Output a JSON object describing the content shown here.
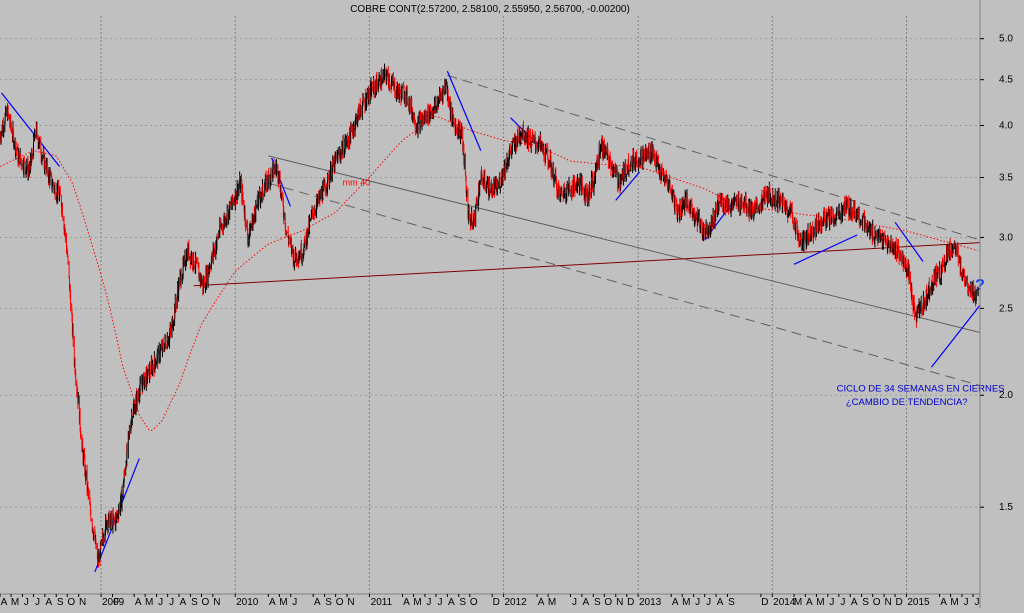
{
  "chart_data": {
    "type": "candlestick",
    "title": "COBRE CONT(2.57200, 2.58100, 2.55950, 2.56700, -0.00200)",
    "xlabel": "",
    "ylabel": "",
    "y_scale": "log",
    "ylim": [
      1.2,
      5.3
    ],
    "y_ticks": [
      {
        "value": 5.0,
        "label": "5.0"
      },
      {
        "value": 4.5,
        "label": "4.5"
      },
      {
        "value": 4.0,
        "label": "4.0"
      },
      {
        "value": 3.5,
        "label": "3.5"
      },
      {
        "value": 3.0,
        "label": "3.0"
      },
      {
        "value": 2.5,
        "label": "2.5"
      },
      {
        "value": 2.0,
        "label": "2.0"
      },
      {
        "value": 1.5,
        "label": "1.5"
      }
    ],
    "x_start": "2008-04-01",
    "x_end": "2015-07-20",
    "x_ticks": [
      {
        "date": "2008-04-01",
        "label": "A"
      },
      {
        "date": "2008-05-01",
        "label": "M"
      },
      {
        "date": "2008-06-01",
        "label": "J"
      },
      {
        "date": "2008-07-01",
        "label": "J"
      },
      {
        "date": "2008-08-01",
        "label": "A"
      },
      {
        "date": "2008-09-01",
        "label": "S"
      },
      {
        "date": "2008-10-01",
        "label": "O"
      },
      {
        "date": "2008-11-01",
        "label": "N"
      },
      {
        "date": "2009-01-01",
        "label": "2009"
      },
      {
        "date": "2009-02-01",
        "label": "F"
      },
      {
        "date": "2009-04-01",
        "label": "A"
      },
      {
        "date": "2009-05-01",
        "label": "M"
      },
      {
        "date": "2009-06-01",
        "label": "J"
      },
      {
        "date": "2009-07-01",
        "label": "J"
      },
      {
        "date": "2009-08-01",
        "label": "A"
      },
      {
        "date": "2009-09-01",
        "label": "S"
      },
      {
        "date": "2009-10-01",
        "label": "O"
      },
      {
        "date": "2009-11-01",
        "label": "N"
      },
      {
        "date": "2010-01-01",
        "label": "2010"
      },
      {
        "date": "2010-04-01",
        "label": "A"
      },
      {
        "date": "2010-05-01",
        "label": "M"
      },
      {
        "date": "2010-06-01",
        "label": "J"
      },
      {
        "date": "2010-08-01",
        "label": "A"
      },
      {
        "date": "2010-09-01",
        "label": "S"
      },
      {
        "date": "2010-10-01",
        "label": "O"
      },
      {
        "date": "2010-11-01",
        "label": "N"
      },
      {
        "date": "2011-01-01",
        "label": "2011"
      },
      {
        "date": "2011-04-01",
        "label": "A"
      },
      {
        "date": "2011-05-01",
        "label": "M"
      },
      {
        "date": "2011-06-01",
        "label": "J"
      },
      {
        "date": "2011-07-01",
        "label": "J"
      },
      {
        "date": "2011-08-01",
        "label": "A"
      },
      {
        "date": "2011-09-01",
        "label": "S"
      },
      {
        "date": "2011-10-01",
        "label": "O"
      },
      {
        "date": "2011-12-01",
        "label": "D"
      },
      {
        "date": "2012-01-01",
        "label": "2012"
      },
      {
        "date": "2012-04-01",
        "label": "A"
      },
      {
        "date": "2012-05-01",
        "label": "M"
      },
      {
        "date": "2012-07-01",
        "label": "J"
      },
      {
        "date": "2012-08-01",
        "label": "A"
      },
      {
        "date": "2012-09-01",
        "label": "S"
      },
      {
        "date": "2012-10-01",
        "label": "O"
      },
      {
        "date": "2012-11-01",
        "label": "N"
      },
      {
        "date": "2012-12-01",
        "label": "D"
      },
      {
        "date": "2013-01-01",
        "label": "2013"
      },
      {
        "date": "2013-04-01",
        "label": "A"
      },
      {
        "date": "2013-05-01",
        "label": "M"
      },
      {
        "date": "2013-06-01",
        "label": "J"
      },
      {
        "date": "2013-07-01",
        "label": "J"
      },
      {
        "date": "2013-08-01",
        "label": "A"
      },
      {
        "date": "2013-09-01",
        "label": "S"
      },
      {
        "date": "2013-12-01",
        "label": "D"
      },
      {
        "date": "2014-01-01",
        "label": "2014"
      },
      {
        "date": "2014-03-01",
        "label": "M"
      },
      {
        "date": "2014-04-01",
        "label": "A"
      },
      {
        "date": "2014-05-01",
        "label": "M"
      },
      {
        "date": "2014-06-01",
        "label": "J"
      },
      {
        "date": "2014-07-01",
        "label": "J"
      },
      {
        "date": "2014-08-01",
        "label": "A"
      },
      {
        "date": "2014-09-01",
        "label": "S"
      },
      {
        "date": "2014-10-01",
        "label": "O"
      },
      {
        "date": "2014-11-01",
        "label": "N"
      },
      {
        "date": "2014-12-01",
        "label": "D"
      },
      {
        "date": "2015-01-01",
        "label": "2015"
      },
      {
        "date": "2015-04-01",
        "label": "A"
      },
      {
        "date": "2015-05-01",
        "label": "M"
      },
      {
        "date": "2015-06-01",
        "label": "J"
      },
      {
        "date": "2015-07-01",
        "label": "J"
      }
    ],
    "x_gridlines": [
      "2009-01-01",
      "2010-01-01",
      "2011-01-01",
      "2012-01-01",
      "2013-01-01",
      "2014-01-01",
      "2015-01-01"
    ],
    "price_keypoints": [
      [
        "2008-04-01",
        3.9
      ],
      [
        "2008-04-20",
        4.15
      ],
      [
        "2008-05-20",
        3.7
      ],
      [
        "2008-06-20",
        3.55
      ],
      [
        "2008-07-08",
        3.95
      ],
      [
        "2008-07-25",
        3.7
      ],
      [
        "2008-08-20",
        3.45
      ],
      [
        "2008-09-15",
        3.3
      ],
      [
        "2008-09-30",
        2.9
      ],
      [
        "2008-10-20",
        2.2
      ],
      [
        "2008-11-10",
        1.75
      ],
      [
        "2008-12-01",
        1.5
      ],
      [
        "2008-12-24",
        1.3
      ],
      [
        "2009-01-15",
        1.45
      ],
      [
        "2009-02-10",
        1.45
      ],
      [
        "2009-02-28",
        1.55
      ],
      [
        "2009-03-25",
        1.9
      ],
      [
        "2009-04-20",
        2.05
      ],
      [
        "2009-05-20",
        2.15
      ],
      [
        "2009-06-15",
        2.25
      ],
      [
        "2009-07-10",
        2.35
      ],
      [
        "2009-07-31",
        2.65
      ],
      [
        "2009-08-25",
        2.9
      ],
      [
        "2009-09-15",
        2.8
      ],
      [
        "2009-10-05",
        2.65
      ],
      [
        "2009-10-25",
        2.8
      ],
      [
        "2009-11-20",
        3.05
      ],
      [
        "2009-12-20",
        3.25
      ],
      [
        "2010-01-15",
        3.45
      ],
      [
        "2010-02-05",
        3.0
      ],
      [
        "2010-03-05",
        3.3
      ],
      [
        "2010-04-10",
        3.55
      ],
      [
        "2010-04-25",
        3.6
      ],
      [
        "2010-05-20",
        3.05
      ],
      [
        "2010-06-10",
        2.85
      ],
      [
        "2010-07-05",
        2.9
      ],
      [
        "2010-07-31",
        3.2
      ],
      [
        "2010-09-01",
        3.4
      ],
      [
        "2010-10-01",
        3.65
      ],
      [
        "2010-11-10",
        3.9
      ],
      [
        "2010-12-10",
        4.2
      ],
      [
        "2011-01-10",
        4.4
      ],
      [
        "2011-02-15",
        4.55
      ],
      [
        "2011-03-20",
        4.35
      ],
      [
        "2011-04-10",
        4.35
      ],
      [
        "2011-05-10",
        4.0
      ],
      [
        "2011-06-05",
        4.1
      ],
      [
        "2011-07-01",
        4.2
      ],
      [
        "2011-07-28",
        4.45
      ],
      [
        "2011-08-15",
        4.05
      ],
      [
        "2011-09-10",
        3.9
      ],
      [
        "2011-09-26",
        3.2
      ],
      [
        "2011-10-10",
        3.1
      ],
      [
        "2011-10-31",
        3.5
      ],
      [
        "2011-11-25",
        3.4
      ],
      [
        "2011-12-15",
        3.4
      ],
      [
        "2012-01-20",
        3.75
      ],
      [
        "2012-02-20",
        3.95
      ],
      [
        "2012-03-15",
        3.85
      ],
      [
        "2012-04-10",
        3.8
      ],
      [
        "2012-05-05",
        3.65
      ],
      [
        "2012-06-01",
        3.35
      ],
      [
        "2012-06-25",
        3.4
      ],
      [
        "2012-07-25",
        3.45
      ],
      [
        "2012-08-15",
        3.35
      ],
      [
        "2012-09-05",
        3.5
      ],
      [
        "2012-09-20",
        3.8
      ],
      [
        "2012-10-10",
        3.7
      ],
      [
        "2012-11-10",
        3.45
      ],
      [
        "2012-12-10",
        3.65
      ],
      [
        "2013-01-15",
        3.7
      ],
      [
        "2013-02-10",
        3.75
      ],
      [
        "2013-02-28",
        3.55
      ],
      [
        "2013-03-25",
        3.45
      ],
      [
        "2013-04-20",
        3.2
      ],
      [
        "2013-05-10",
        3.3
      ],
      [
        "2013-06-10",
        3.15
      ],
      [
        "2013-06-28",
        3.05
      ],
      [
        "2013-07-20",
        3.1
      ],
      [
        "2013-08-10",
        3.3
      ],
      [
        "2013-09-10",
        3.25
      ],
      [
        "2013-10-10",
        3.3
      ],
      [
        "2013-11-10",
        3.2
      ],
      [
        "2013-12-20",
        3.35
      ],
      [
        "2014-01-20",
        3.3
      ],
      [
        "2014-02-20",
        3.2
      ],
      [
        "2014-03-20",
        2.95
      ],
      [
        "2014-04-20",
        3.05
      ],
      [
        "2014-05-20",
        3.15
      ],
      [
        "2014-06-20",
        3.15
      ],
      [
        "2014-07-20",
        3.25
      ],
      [
        "2014-08-20",
        3.2
      ],
      [
        "2014-09-20",
        3.05
      ],
      [
        "2014-10-20",
        3.0
      ],
      [
        "2014-11-10",
        2.95
      ],
      [
        "2014-12-10",
        2.9
      ],
      [
        "2015-01-05",
        2.75
      ],
      [
        "2015-01-25",
        2.45
      ],
      [
        "2015-02-20",
        2.55
      ],
      [
        "2015-03-15",
        2.7
      ],
      [
        "2015-04-05",
        2.75
      ],
      [
        "2015-04-25",
        2.9
      ],
      [
        "2015-05-12",
        2.93
      ],
      [
        "2015-06-01",
        2.75
      ],
      [
        "2015-06-20",
        2.65
      ],
      [
        "2015-07-15",
        2.567
      ]
    ],
    "ma_keypoints": [
      [
        "2008-04-01",
        3.6
      ],
      [
        "2008-07-01",
        3.75
      ],
      [
        "2008-09-01",
        3.7
      ],
      [
        "2008-10-15",
        3.45
      ],
      [
        "2008-12-01",
        3.0
      ],
      [
        "2009-01-20",
        2.55
      ],
      [
        "2009-03-01",
        2.15
      ],
      [
        "2009-04-15",
        1.9
      ],
      [
        "2009-05-15",
        1.82
      ],
      [
        "2009-06-15",
        1.87
      ],
      [
        "2009-08-01",
        2.05
      ],
      [
        "2009-10-01",
        2.4
      ],
      [
        "2010-01-01",
        2.75
      ],
      [
        "2010-04-01",
        2.95
      ],
      [
        "2010-07-01",
        3.05
      ],
      [
        "2010-10-01",
        3.2
      ],
      [
        "2011-01-01",
        3.5
      ],
      [
        "2011-04-01",
        3.85
      ],
      [
        "2011-07-01",
        4.1
      ],
      [
        "2011-10-01",
        3.95
      ],
      [
        "2012-01-01",
        3.85
      ],
      [
        "2012-04-01",
        3.8
      ],
      [
        "2012-07-01",
        3.65
      ],
      [
        "2012-10-01",
        3.62
      ],
      [
        "2013-01-01",
        3.6
      ],
      [
        "2013-04-01",
        3.5
      ],
      [
        "2013-07-01",
        3.4
      ],
      [
        "2013-10-01",
        3.25
      ],
      [
        "2014-01-01",
        3.22
      ],
      [
        "2014-04-01",
        3.18
      ],
      [
        "2014-07-01",
        3.15
      ],
      [
        "2014-10-01",
        3.1
      ],
      [
        "2015-01-01",
        3.05
      ],
      [
        "2015-04-01",
        2.98
      ],
      [
        "2015-07-15",
        2.9
      ]
    ],
    "series": [
      {
        "name": "COBRE CONT",
        "style": "candles",
        "color_up": "#000000",
        "color_down": "#ff0000"
      },
      {
        "name": "mm 40",
        "style": "dotted-line",
        "color": "#ff0000"
      }
    ],
    "trendlines": [
      {
        "kind": "channel-upper",
        "style": "dashed",
        "color": "#606060",
        "from": [
          "2011-08-01",
          4.55
        ],
        "to": [
          "2015-07-20",
          2.98
        ]
      },
      {
        "kind": "channel-middle",
        "style": "solid",
        "color": "#606060",
        "from": [
          "2010-04-01",
          3.7
        ],
        "to": [
          "2015-07-20",
          2.35
        ]
      },
      {
        "kind": "channel-lower",
        "style": "dashed",
        "color": "#606060",
        "from": [
          "2010-04-01",
          3.45
        ],
        "to": [
          "2015-07-20",
          2.05
        ]
      },
      {
        "kind": "support",
        "style": "solid",
        "color": "#800000",
        "from": [
          "2009-09-10",
          2.65
        ],
        "to": [
          "2015-07-20",
          2.96
        ]
      },
      {
        "kind": "short",
        "style": "solid",
        "color": "#0000ff",
        "from": [
          "2008-04-05",
          4.35
        ],
        "to": [
          "2008-09-10",
          3.6
        ]
      },
      {
        "kind": "short",
        "style": "solid",
        "color": "#0000ff",
        "from": [
          "2008-12-15",
          1.27
        ],
        "to": [
          "2009-04-15",
          1.7
        ]
      },
      {
        "kind": "short",
        "style": "solid",
        "color": "#0000ff",
        "from": [
          "2010-04-10",
          3.68
        ],
        "to": [
          "2010-05-31",
          3.25
        ]
      },
      {
        "kind": "short",
        "style": "solid",
        "color": "#0000ff",
        "from": [
          "2011-08-01",
          4.6
        ],
        "to": [
          "2011-10-31",
          3.75
        ]
      },
      {
        "kind": "short",
        "style": "solid",
        "color": "#0000ff",
        "from": [
          "2012-01-20",
          4.08
        ],
        "to": [
          "2012-04-20",
          3.75
        ]
      },
      {
        "kind": "short",
        "style": "solid",
        "color": "#0000ff",
        "from": [
          "2012-11-01",
          3.3
        ],
        "to": [
          "2013-01-05",
          3.55
        ]
      },
      {
        "kind": "short",
        "style": "solid",
        "color": "#0000ff",
        "from": [
          "2013-07-01",
          2.98
        ],
        "to": [
          "2013-09-25",
          3.32
        ]
      },
      {
        "kind": "short",
        "style": "solid",
        "color": "#0000ff",
        "from": [
          "2014-03-01",
          2.8
        ],
        "to": [
          "2014-08-20",
          3.02
        ]
      },
      {
        "kind": "short",
        "style": "solid",
        "color": "#0000ff",
        "from": [
          "2014-12-01",
          3.12
        ],
        "to": [
          "2015-02-15",
          2.82
        ]
      },
      {
        "kind": "short",
        "style": "solid",
        "color": "#0000ff",
        "from": [
          "2015-03-10",
          2.15
        ],
        "to": [
          "2015-07-20",
          2.52
        ]
      }
    ],
    "annotations": [
      {
        "id": "ma",
        "text": "mm 40",
        "color": "#ff0000",
        "date": "2010-10-20",
        "value": 3.43
      },
      {
        "id": "cycle",
        "text": "CICLO DE 34 SEMANAS EN CIERNES",
        "color": "#0000cc",
        "date": "2014-06-25",
        "value": 2.02
      },
      {
        "id": "trend",
        "text": "¿CAMBIO DE TENDENCIA?",
        "color": "#0000cc",
        "date": "2014-07-20",
        "value": 1.95
      },
      {
        "id": "question",
        "text": "?",
        "color": "#1040ff",
        "date": "2015-07-20",
        "value": 2.62
      }
    ],
    "grid": true,
    "legend": "none"
  }
}
